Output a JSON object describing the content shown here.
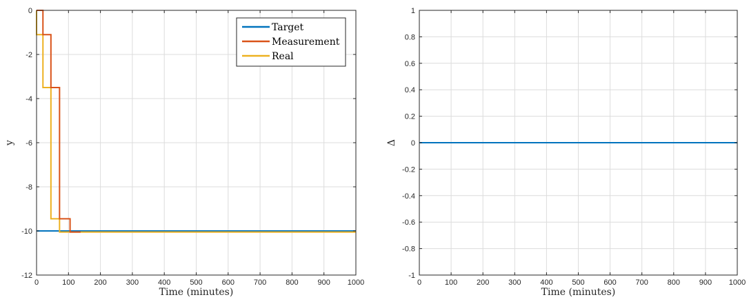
{
  "colors": {
    "target": "#0072BD",
    "measurement": "#D95319",
    "real": "#EDB120",
    "grid": "#dcdcdc",
    "axis": "#262626"
  },
  "chart_data": [
    {
      "type": "line",
      "title": "",
      "xlabel": "Time (minutes)",
      "ylabel": "y",
      "xlim": [
        0,
        1000
      ],
      "ylim": [
        -12,
        0
      ],
      "xticks": [
        0,
        100,
        200,
        300,
        400,
        500,
        600,
        700,
        800,
        900,
        1000
      ],
      "yticks": [
        0,
        -2,
        -4,
        -6,
        -8,
        -10,
        -12
      ],
      "xtick_labels": [
        "0",
        "100",
        "200",
        "300",
        "400",
        "500",
        "600",
        "700",
        "800",
        "900",
        "1000"
      ],
      "ytick_labels": [
        "0",
        "-2",
        "-4",
        "-6",
        "-8",
        "-10",
        "-12"
      ],
      "grid": true,
      "legend": "top-right",
      "series": [
        {
          "name": "Target",
          "color": "#0072BD",
          "x": [
            0,
            1000
          ],
          "y": [
            -10,
            -10
          ]
        },
        {
          "name": "Measurement",
          "color": "#D95319",
          "step": true,
          "x": [
            0,
            20,
            20,
            45,
            45,
            72,
            72,
            105,
            105,
            138
          ],
          "y": [
            0,
            0,
            -1.1,
            -1.1,
            -3.5,
            -3.5,
            -9.45,
            -9.45,
            -10.05,
            -10.05
          ]
        },
        {
          "name": "Real",
          "color": "#EDB120",
          "step": true,
          "x": [
            0,
            0,
            20,
            20,
            45,
            45,
            72,
            72,
            1000
          ],
          "y": [
            0,
            -1.1,
            -1.1,
            -3.5,
            -3.5,
            -9.45,
            -9.45,
            -10.05,
            -10.05
          ]
        }
      ]
    },
    {
      "type": "line",
      "title": "",
      "xlabel": "Time (minutes)",
      "ylabel": "Δ",
      "xlim": [
        0,
        1000
      ],
      "ylim": [
        -1,
        1
      ],
      "xticks": [
        0,
        100,
        200,
        300,
        400,
        500,
        600,
        700,
        800,
        900,
        1000
      ],
      "yticks": [
        1,
        0.8,
        0.6,
        0.4,
        0.2,
        0,
        -0.2,
        -0.4,
        -0.6,
        -0.8,
        -1
      ],
      "xtick_labels": [
        "0",
        "100",
        "200",
        "300",
        "400",
        "500",
        "600",
        "700",
        "800",
        "900",
        "1000"
      ],
      "ytick_labels": [
        "1",
        "0.8",
        "0.6",
        "0.4",
        "0.2",
        "0",
        "-0.2",
        "-0.4",
        "-0.6",
        "-0.8",
        "-1"
      ],
      "grid": true,
      "series": [
        {
          "color": "#0072BD",
          "x": [
            0,
            1000
          ],
          "y": [
            0,
            0
          ]
        }
      ]
    }
  ]
}
